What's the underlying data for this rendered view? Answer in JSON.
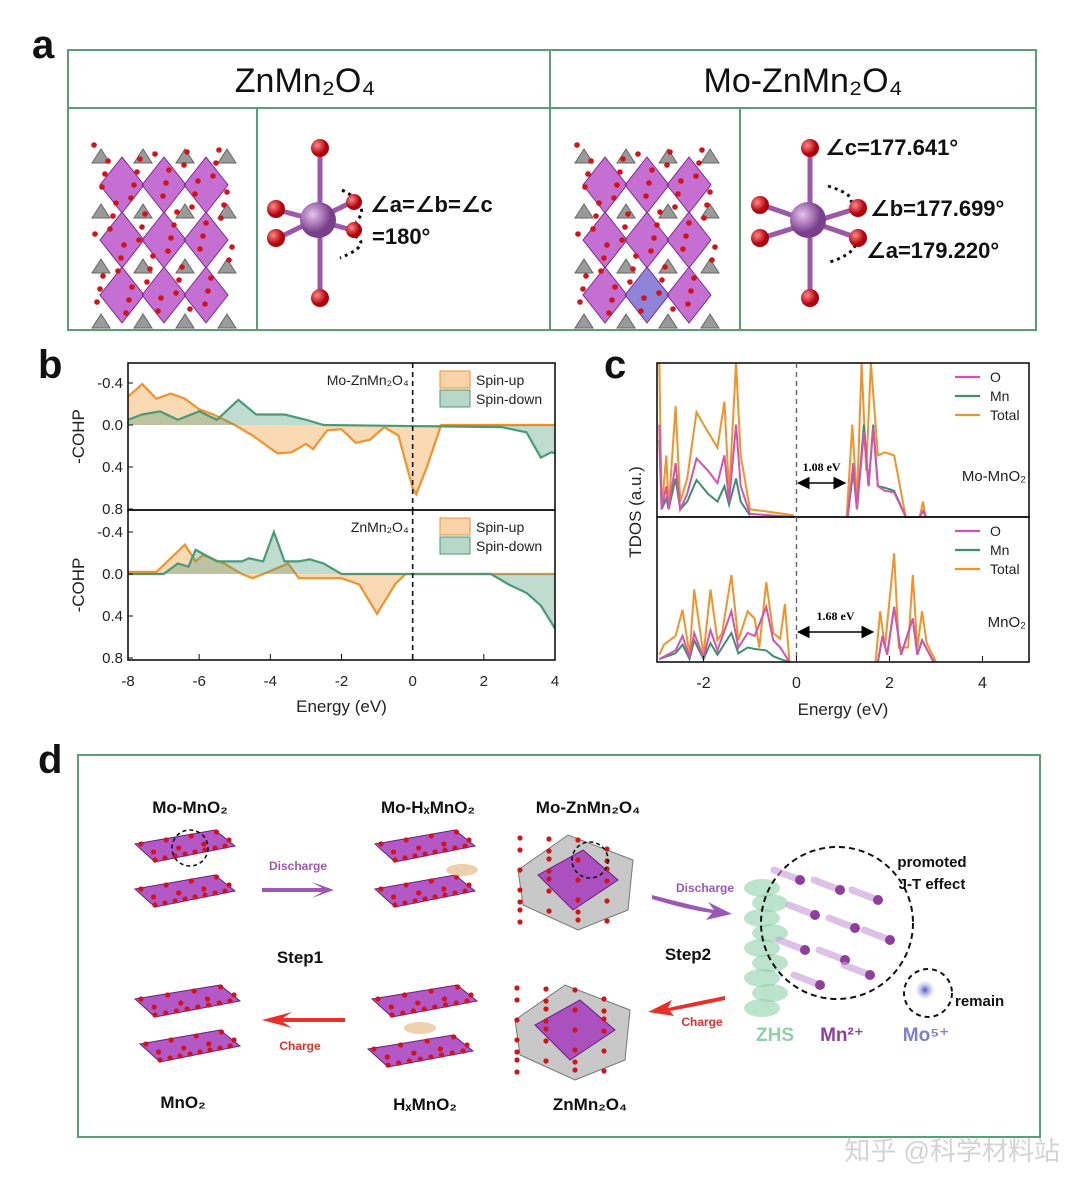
{
  "panel_labels": {
    "a": "a",
    "b": "b",
    "c": "c",
    "d": "d"
  },
  "panel_a": {
    "left_title": "ZnMn₂O₄",
    "right_title": "Mo-ZnMn₂O₄",
    "left_angle_line1": "∠a=∠b=∠c",
    "left_angle_line2": "=180°",
    "right_angle_c": "∠c=177.641°",
    "right_angle_b": "∠b=177.699°",
    "right_angle_a": "∠a=179.220°",
    "colors": {
      "border": "#5a9e78",
      "mn": "#9b59a8",
      "o": "#d0141a",
      "zn": "#8c8c8c",
      "polyhedra": "#b23fc4"
    }
  },
  "chart_data": [
    {
      "type": "area",
      "panel": "b",
      "xlabel": "Energy (eV)",
      "ylabel": "-COHP",
      "xlim": [
        -8,
        4
      ],
      "xticks": [
        "-8",
        "-6",
        "-4",
        "-2",
        "0",
        "2",
        "4"
      ],
      "yticks": [
        "-0.4",
        "0.0",
        "0.4",
        "0.8"
      ],
      "fermi_line": 0,
      "subplots": [
        {
          "label": "Mo-ZnMn₂O₄",
          "ylim": [
            -0.6,
            0.8
          ],
          "legend": [
            "Spin-up",
            "Spin-down"
          ],
          "series": [
            {
              "name": "Spin-up",
              "color": "#f0932b",
              "x": [
                -8,
                -7.6,
                -7.2,
                -6.8,
                -6.4,
                -6,
                -5.6,
                -5,
                -4.5,
                -3.8,
                -3.4,
                -3,
                -2.8,
                -2.4,
                -2,
                -1.6,
                -1.2,
                -0.8,
                -0.4,
                0,
                0.1,
                0.4,
                0.8,
                4
              ],
              "y": [
                -0.27,
                -0.39,
                -0.25,
                -0.3,
                -0.25,
                -0.15,
                -0.1,
                0,
                0.1,
                0.27,
                0.26,
                0.18,
                0.23,
                0.05,
                0.04,
                0.17,
                0.14,
                0.02,
                0.1,
                0.6,
                0.66,
                0.4,
                0,
                0
              ]
            },
            {
              "name": "Spin-down",
              "color": "#4a9a78",
              "x": [
                -8,
                -7.6,
                -7.1,
                -6.6,
                -6,
                -5.5,
                -4.9,
                -4.4,
                -3.6,
                -3,
                -2.5,
                2.5,
                3.2,
                3.6,
                3.9,
                4
              ],
              "y": [
                -0.05,
                -0.1,
                -0.13,
                -0.05,
                -0.13,
                -0.05,
                -0.24,
                -0.1,
                -0.1,
                -0.05,
                0,
                0.02,
                0.07,
                0.31,
                0.26,
                0.27
              ]
            }
          ]
        },
        {
          "label": "ZnMn₂O₄",
          "ylim": [
            -0.6,
            0.8
          ],
          "legend": [
            "Spin-up",
            "Spin-down"
          ],
          "series": [
            {
              "name": "Spin-up",
              "color": "#f0932b",
              "x": [
                -8,
                -7.2,
                -6.8,
                -6.4,
                -6.1,
                -5.9,
                -5.3,
                -4.8,
                -4.5,
                -4.2,
                -3.5,
                -3.2,
                -2,
                -1.5,
                -1,
                -0.5,
                -0.2,
                4
              ],
              "y": [
                -0.02,
                -0.02,
                -0.15,
                -0.28,
                -0.12,
                -0.18,
                -0.1,
                0,
                0.04,
                0,
                -0.1,
                0.04,
                0.04,
                0.1,
                0.38,
                0.1,
                0,
                0
              ]
            },
            {
              "name": "Spin-down",
              "color": "#4a9a78",
              "x": [
                -8,
                -7,
                -6.6,
                -6.3,
                -6.1,
                -5.5,
                -4.8,
                -4.6,
                -4.2,
                -3.9,
                -3.6,
                -3.2,
                -2.9,
                -2.5,
                -2,
                2.2,
                2.7,
                3.2,
                3.6,
                4
              ],
              "y": [
                0,
                0,
                -0.1,
                -0.07,
                -0.23,
                -0.12,
                -0.12,
                -0.15,
                -0.12,
                -0.4,
                -0.12,
                -0.12,
                -0.14,
                -0.1,
                0,
                0,
                0.1,
                0.18,
                0.3,
                0.52
              ]
            }
          ]
        }
      ]
    },
    {
      "type": "line",
      "panel": "c",
      "xlabel": "Energy (eV)",
      "ylabel": "TDOS (a.u.)",
      "xlim": [
        -3,
        5
      ],
      "xticks": [
        "-2",
        "0",
        "2",
        "4"
      ],
      "fermi_line": 0,
      "subplots": [
        {
          "label": "Mo-MnO₂",
          "gap_label": "1.08 eV",
          "gap": [
            0,
            1.08
          ],
          "legend": [
            "O",
            "Mn",
            "Total"
          ],
          "series": [
            {
              "name": "O",
              "color": "#d452b0",
              "x": [
                -2.95,
                -2.9,
                -2.8,
                -2.75,
                -2.6,
                -2.5,
                -2.35,
                -2.15,
                -1.9,
                -1.7,
                -1.55,
                -1.45,
                -1.3,
                -1.2,
                -1.0,
                -0.5,
                -0.05,
                null,
                1.1,
                1.22,
                1.3,
                1.45,
                1.55,
                1.65,
                1.75,
                1.9,
                2.1,
                2.35,
                2.65,
                2.72,
                2.78
              ],
              "y": [
                0.6,
                0.05,
                0.2,
                0.05,
                0.35,
                0.05,
                0.15,
                0.38,
                0.3,
                0.22,
                0.4,
                0.1,
                0.6,
                0.2,
                0.02,
                0.01,
                0,
                null,
                0,
                0.35,
                0.05,
                0.55,
                0.2,
                0.58,
                0.2,
                0.17,
                0.16,
                0,
                0,
                0.04,
                0
              ]
            },
            {
              "name": "Mn",
              "color": "#3d8f6e",
              "x": [
                -2.95,
                -2.9,
                -2.8,
                -2.75,
                -2.6,
                -2.5,
                -2.35,
                -2.15,
                -1.9,
                -1.7,
                -1.55,
                -1.45,
                -1.3,
                -1.2,
                -1.0,
                null,
                1.1,
                1.22,
                1.3,
                1.45,
                1.55,
                1.65,
                1.75,
                1.9,
                2.1,
                2.35
              ],
              "y": [
                0.5,
                0.05,
                0.12,
                0.05,
                0.25,
                0.05,
                0.1,
                0.24,
                0.15,
                0.1,
                0.2,
                0.08,
                0.25,
                0.1,
                0.01,
                null,
                0,
                0.3,
                0.05,
                0.6,
                0.2,
                0.6,
                0.2,
                0.19,
                0.17,
                0
              ]
            },
            {
              "name": "Total",
              "color": "#f0932b",
              "x": [
                -2.95,
                -2.9,
                -2.8,
                -2.75,
                -2.6,
                -2.5,
                -2.35,
                -2.15,
                -1.9,
                -1.7,
                -1.55,
                -1.45,
                -1.3,
                -1.2,
                -1.0,
                -0.5,
                -0.05,
                null,
                1.08,
                1.2,
                1.3,
                1.4,
                1.5,
                1.6,
                1.75,
                1.9,
                2.1,
                2.35,
                2.65,
                2.72,
                2.78
              ],
              "y": [
                1,
                0.05,
                0.4,
                0.05,
                0.72,
                0.1,
                0.25,
                0.68,
                0.55,
                0.45,
                0.75,
                0.15,
                1,
                0.4,
                0.05,
                0.03,
                0.01,
                null,
                0,
                0.6,
                0.1,
                1,
                0.3,
                1,
                0.4,
                0.42,
                0.4,
                0,
                0,
                0.1,
                0
              ]
            }
          ]
        },
        {
          "label": "MnO₂",
          "gap_label": "1.68 eV",
          "gap": [
            0,
            1.68
          ],
          "legend": [
            "O",
            "Mn",
            "Total"
          ],
          "series": [
            {
              "name": "O",
              "color": "#d452b0",
              "x": [
                -2.95,
                -2.6,
                -2.45,
                -2.3,
                -2.2,
                -2.0,
                -1.85,
                -1.7,
                -1.4,
                -1.25,
                -1.05,
                -0.9,
                -0.65,
                -0.5,
                -0.35,
                -0.15,
                null,
                1.75,
                1.85,
                1.95,
                2.1,
                2.25,
                2.5,
                2.6,
                2.7,
                2.85,
                2.95
              ],
              "y": [
                0.02,
                0.08,
                0.18,
                0.03,
                0.2,
                0.03,
                0.22,
                0.08,
                0.35,
                0.1,
                0.2,
                0.18,
                0.38,
                0.15,
                0.1,
                0,
                null,
                0,
                0.18,
                0.05,
                0.38,
                0.05,
                0.3,
                0.05,
                0.15,
                0.06,
                0
              ]
            },
            {
              "name": "Mn",
              "color": "#3d8f6e",
              "x": [
                -2.95,
                -2.6,
                -2.45,
                -2.3,
                -2.2,
                -2.0,
                -1.85,
                -1.7,
                -1.4,
                -1.25,
                -1.05,
                -0.9,
                -0.65,
                -0.5,
                -0.35,
                -0.15,
                null,
                1.75,
                1.85,
                1.95,
                2.1,
                2.25,
                2.5,
                2.6,
                2.7,
                2.85,
                2.95
              ],
              "y": [
                0.02,
                0.06,
                0.12,
                0.02,
                0.15,
                0.02,
                0.13,
                0.05,
                0.2,
                0.06,
                0.1,
                0.09,
                0.08,
                0.04,
                0.02,
                0,
                null,
                0,
                0.18,
                0.05,
                0.38,
                0.05,
                0.3,
                0.05,
                0.15,
                0.06,
                0
              ]
            },
            {
              "name": "Total",
              "color": "#f0932b",
              "x": [
                -2.95,
                -2.85,
                -2.6,
                -2.45,
                -2.3,
                -2.2,
                -2.0,
                -1.85,
                -1.7,
                -1.6,
                -1.4,
                -1.25,
                -1.05,
                -0.9,
                -0.8,
                -0.65,
                -0.5,
                -0.35,
                -0.25,
                -0.15,
                null,
                1.7,
                1.8,
                1.9,
                2.1,
                2.2,
                2.4,
                2.5,
                2.6,
                2.7,
                2.8,
                3.0
              ],
              "y": [
                0.05,
                0.12,
                0.18,
                0.36,
                0.05,
                0.5,
                0.05,
                0.5,
                0.15,
                0.2,
                0.6,
                0.15,
                0.35,
                0.3,
                0.1,
                0.55,
                0.2,
                0.16,
                0.4,
                0,
                null,
                0,
                0.35,
                0.1,
                0.75,
                0.1,
                0.1,
                0.6,
                0.1,
                0.35,
                0.13,
                0
              ]
            }
          ]
        }
      ]
    }
  ],
  "panel_d": {
    "labels": {
      "mo_mno2": "Mo-MnO₂",
      "mo_hxmno2": "Mo-HₓMnO₂",
      "mo_znmn2o4": "Mo-ZnMn₂O₄",
      "mno2": "MnO₂",
      "hxmno2": "HₓMnO₂",
      "znmn2o4": "ZnMn₂O₄",
      "step1": "Step1",
      "step2": "Step2",
      "discharge1": "Discharge",
      "charge1": "Charge",
      "discharge2": "Discharge",
      "charge2": "Charge",
      "jt_line1": "promoted",
      "jt_line2": "J-T effect",
      "remain": "remain",
      "zhs": "ZHS",
      "mn_ion": "Mn²⁺",
      "mo_ion": "Mo⁵⁺"
    },
    "colors": {
      "discharge_arrow": "#9b59b6",
      "charge_arrow": "#e8302a",
      "zhs": "#8fd1a8",
      "mn_ion": "#8e3f9a",
      "mo_ion": "#7d7fd0"
    }
  },
  "watermark": "知乎 @科学材料站"
}
